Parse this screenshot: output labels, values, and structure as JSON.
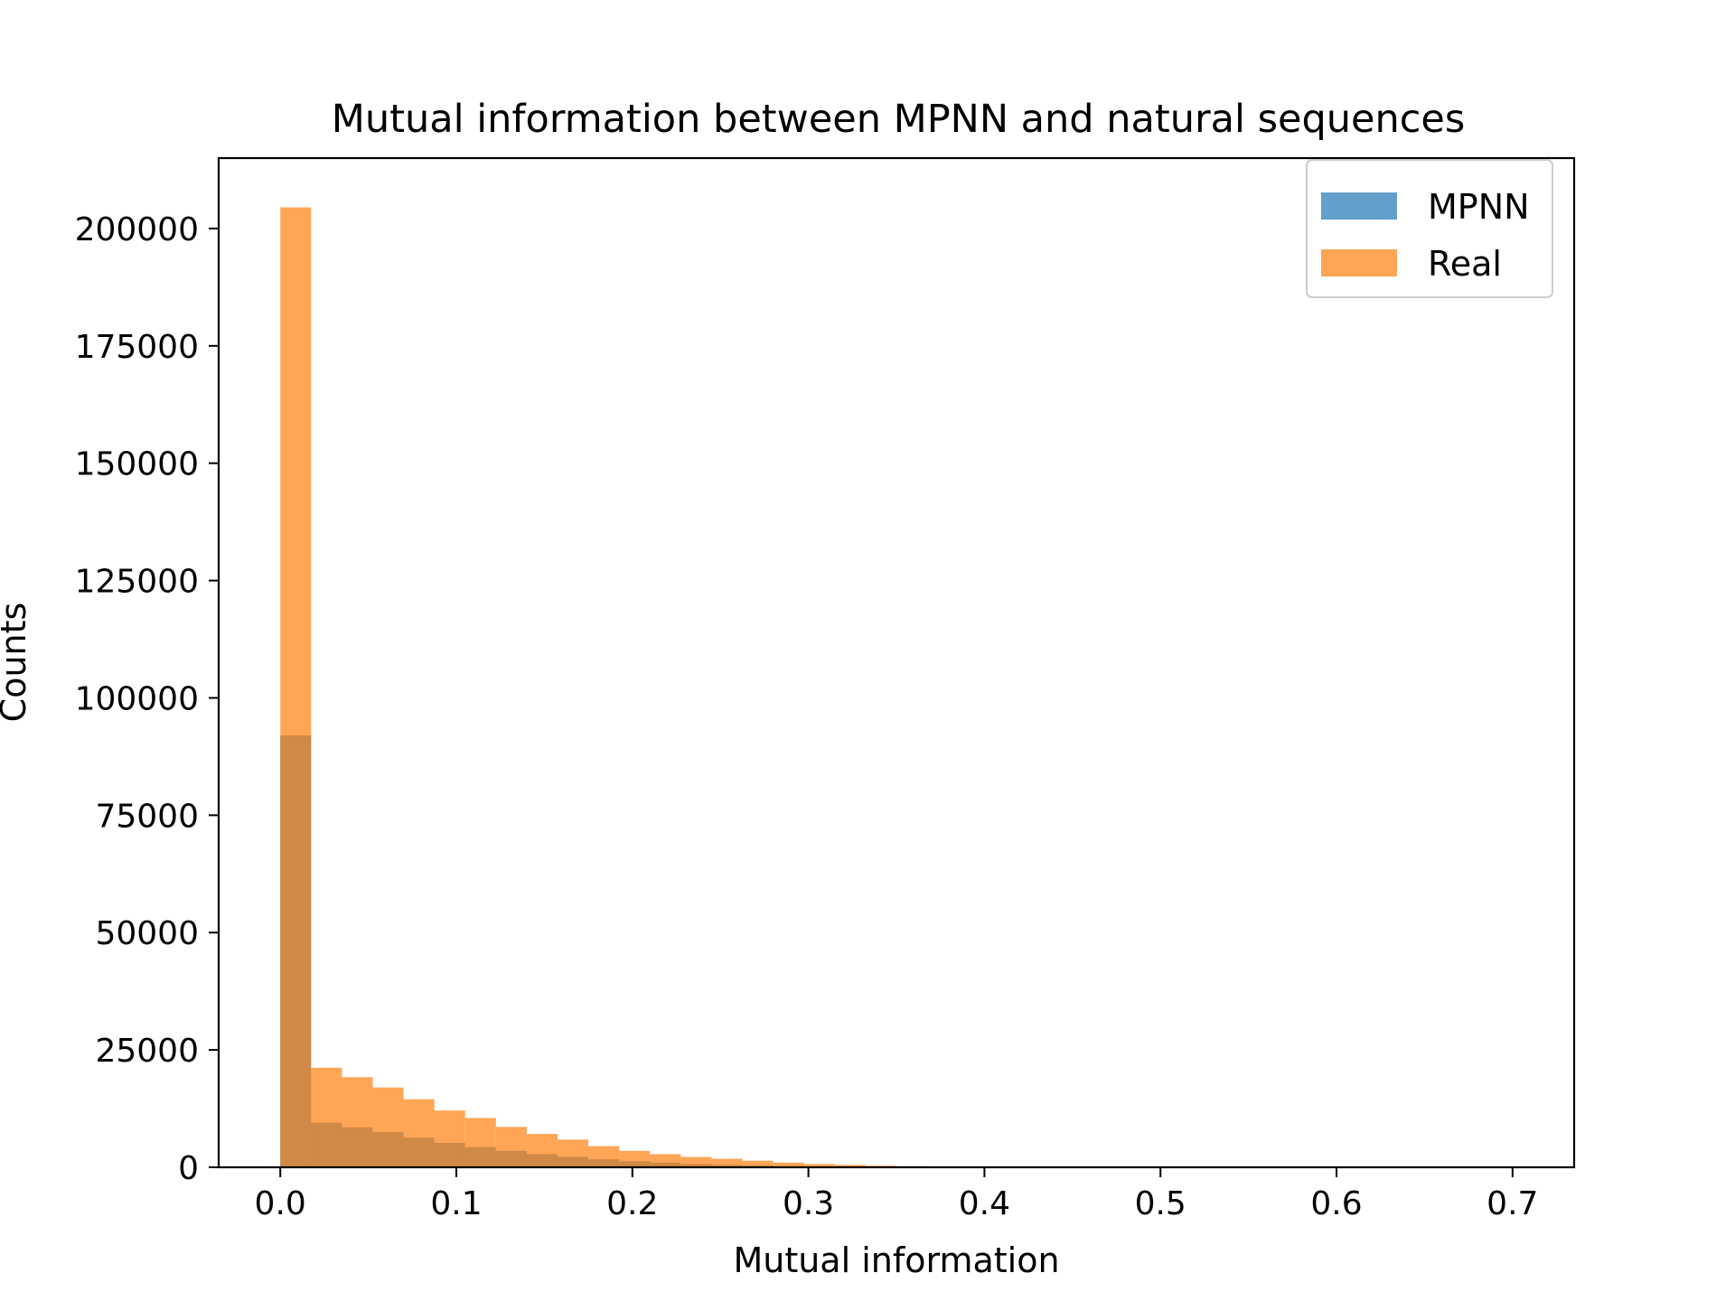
{
  "chart_data": {
    "type": "bar",
    "title": "Mutual information between MPNN and natural sequences",
    "xlabel": "Mutual information",
    "ylabel": "Counts",
    "xlim": [
      -0.035,
      0.735
    ],
    "ylim": [
      0,
      215000
    ],
    "xticks": [
      "0.0",
      "0.1",
      "0.2",
      "0.3",
      "0.4",
      "0.5",
      "0.6",
      "0.7"
    ],
    "yticks": [
      "0",
      "25000",
      "50000",
      "75000",
      "100000",
      "125000",
      "150000",
      "175000",
      "200000"
    ],
    "bin_edges": [
      0.0,
      0.0175,
      0.035,
      0.0525,
      0.07,
      0.0875,
      0.105,
      0.1225,
      0.14,
      0.1575,
      0.175,
      0.1925,
      0.21,
      0.2275,
      0.245,
      0.2625,
      0.28,
      0.2975,
      0.315,
      0.3325,
      0.35,
      0.3675,
      0.385
    ],
    "series": [
      {
        "name": "MPNN",
        "color": "#1f77b4",
        "values": [
          92000,
          9500,
          8500,
          7500,
          6300,
          5200,
          4300,
          3500,
          2800,
          2200,
          1700,
          1300,
          1000,
          700,
          500,
          350,
          250,
          170,
          110,
          70,
          40,
          20
        ]
      },
      {
        "name": "Real",
        "color": "#ff7f0e",
        "values": [
          204500,
          21200,
          19200,
          17000,
          14500,
          12100,
          10500,
          8600,
          7100,
          5900,
          4500,
          3500,
          2800,
          2200,
          1800,
          1400,
          1000,
          700,
          500,
          330,
          200,
          100
        ]
      }
    ],
    "legend_position": "top-right",
    "grid": false,
    "alpha": 0.7
  }
}
